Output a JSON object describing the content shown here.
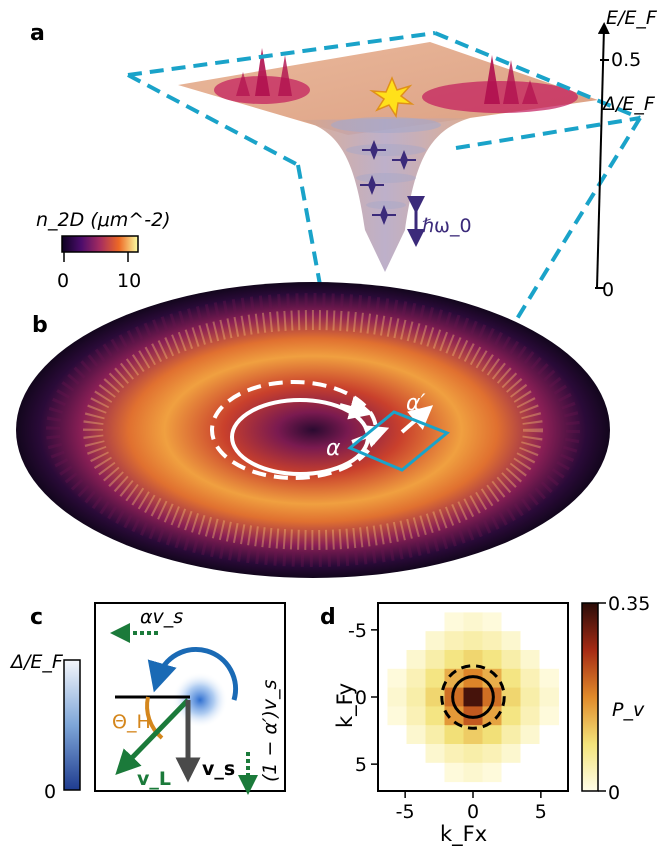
{
  "panels": {
    "a": {
      "label": "a",
      "axis_label": "E/E_F",
      "axis_ticks": [
        "0.5",
        "Δ/E_F",
        "0"
      ],
      "density_label": "n_2D (μm^-2)",
      "colorbar_ticks": [
        "0",
        "10"
      ],
      "excitation_label": "ℏω_0",
      "colors": {
        "frame": "#1aa3c9",
        "surface": "#e6a88a",
        "soliton": "#c2185b",
        "spark": "#ffe11a",
        "excitation": "#3b2a7a"
      }
    },
    "b": {
      "label": "b",
      "alpha": "α",
      "alpha_prime": "α′",
      "colors": {
        "rings": "#ffffff",
        "box": "#1aa3c9",
        "cloud_hot": "#f2b65a",
        "cloud_mid": "#c4402e",
        "cloud_dark": "#1a0a2a"
      }
    },
    "c": {
      "label": "c",
      "colorbar_top": "Δ/E_F",
      "colorbar_bottom": "0",
      "alpha_vs": "αv_s",
      "one_minus_alpha_prime_vs": "(1 − α′)v_s",
      "theta_h": "Θ_H",
      "vL": "v_L",
      "vs": "v_s",
      "colors": {
        "arc": "#1a6ab5",
        "green": "#1b7a3a",
        "theta": "#d4861c",
        "vs_arrow": "#4a4a4a"
      }
    },
    "d": {
      "label": "d",
      "xlabel": "k_Fx",
      "ylabel": "k_Fy",
      "colorbar_label": "P_v",
      "colorbar_ticks": [
        "0.35",
        "0"
      ]
    }
  },
  "chart_data": {
    "type": "heatmap",
    "title": "",
    "xlabel": "k_Fx",
    "ylabel": "k_Fy",
    "x_ticks": [
      -5,
      0,
      5
    ],
    "y_ticks": [
      -5,
      0,
      5
    ],
    "xlim": [
      -7,
      7
    ],
    "ylim": [
      7,
      -7
    ],
    "zlim": [
      0,
      0.35
    ],
    "zlabel": "P_v",
    "cell_size": 1.4,
    "grid_x": [
      -5.6,
      -4.2,
      -2.8,
      -1.4,
      0,
      1.4,
      2.8,
      4.2,
      5.6
    ],
    "grid_y": [
      -5.6,
      -4.2,
      -2.8,
      -1.4,
      0,
      1.4,
      2.8,
      4.2,
      5.6
    ],
    "values": [
      [
        0,
        0,
        0,
        0.01,
        0.02,
        0.01,
        0,
        0,
        0
      ],
      [
        0,
        0,
        0.02,
        0.04,
        0.05,
        0.04,
        0.02,
        0,
        0
      ],
      [
        0,
        0.02,
        0.05,
        0.08,
        0.1,
        0.08,
        0.05,
        0.02,
        0
      ],
      [
        0.01,
        0.04,
        0.08,
        0.14,
        0.18,
        0.14,
        0.08,
        0.04,
        0.01
      ],
      [
        0.02,
        0.05,
        0.1,
        0.2,
        0.33,
        0.2,
        0.1,
        0.05,
        0.02
      ],
      [
        0.01,
        0.04,
        0.08,
        0.16,
        0.22,
        0.15,
        0.08,
        0.04,
        0.01
      ],
      [
        0,
        0.02,
        0.05,
        0.09,
        0.11,
        0.09,
        0.05,
        0.02,
        0
      ],
      [
        0,
        0,
        0.02,
        0.04,
        0.05,
        0.04,
        0.02,
        0,
        0
      ],
      [
        0,
        0,
        0,
        0.01,
        0.02,
        0.01,
        0,
        0,
        0
      ]
    ],
    "circles": [
      {
        "radius": 1.5,
        "style": "solid"
      },
      {
        "radius": 2.3,
        "style": "dashed"
      }
    ]
  }
}
